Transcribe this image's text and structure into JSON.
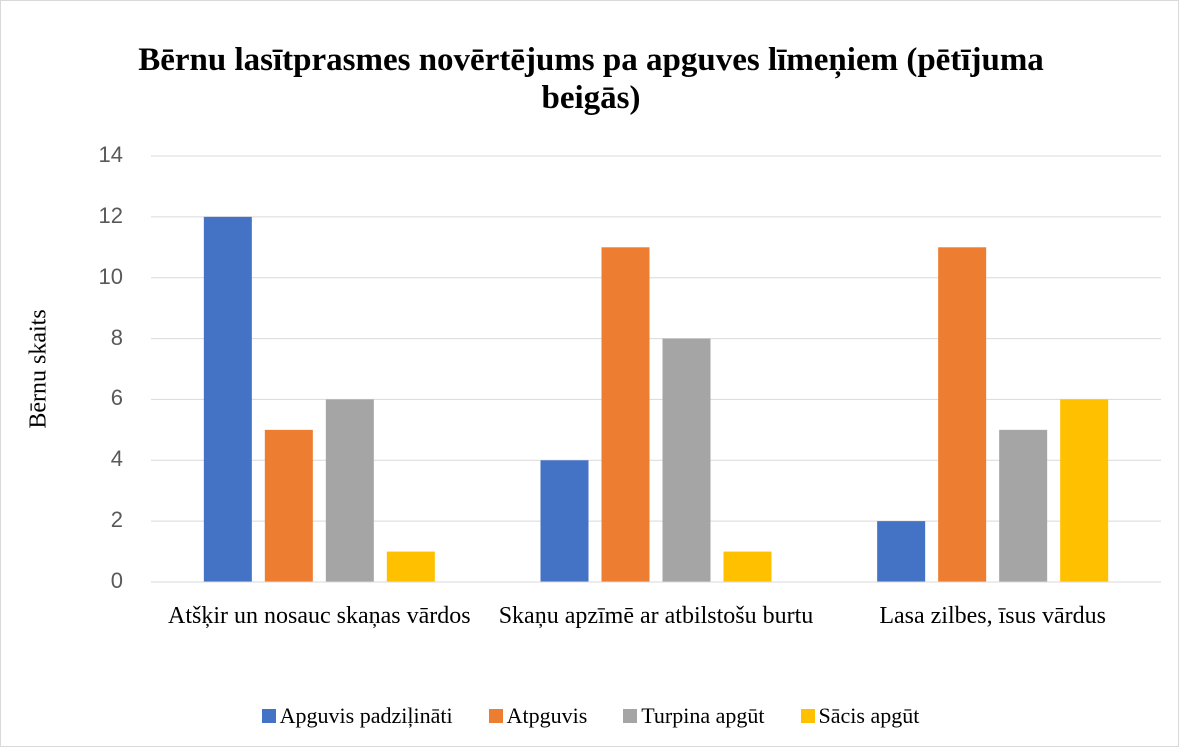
{
  "chart_data": {
    "type": "bar",
    "title": "Bērnu lasītprasmes novērtējums pa apguves līmeņiem (pētījuma beigās)",
    "y_label": "Bērnu skaits",
    "categories": [
      "Atšķir un nosauc skaņas vārdos",
      "Skaņu apzīmē ar atbilstošu burtu",
      "Lasa zilbes, īsus vārdus"
    ],
    "series": [
      {
        "name": "Apguvis padziļināti",
        "color": "#4472c4",
        "values": [
          12,
          4,
          2
        ]
      },
      {
        "name": "Atpguvis",
        "color": "#ed7d31",
        "values": [
          5,
          11,
          11
        ]
      },
      {
        "name": "Turpina apgūt",
        "color": "#a5a5a5",
        "values": [
          6,
          8,
          5
        ]
      },
      {
        "name": "Sācis apgūt",
        "color": "#ffc000",
        "values": [
          1,
          1,
          6
        ]
      }
    ],
    "ylim": [
      0,
      14
    ],
    "yticks": [
      0,
      2,
      4,
      6,
      8,
      10,
      12,
      14
    ],
    "grid": true,
    "legend": "bottom"
  }
}
